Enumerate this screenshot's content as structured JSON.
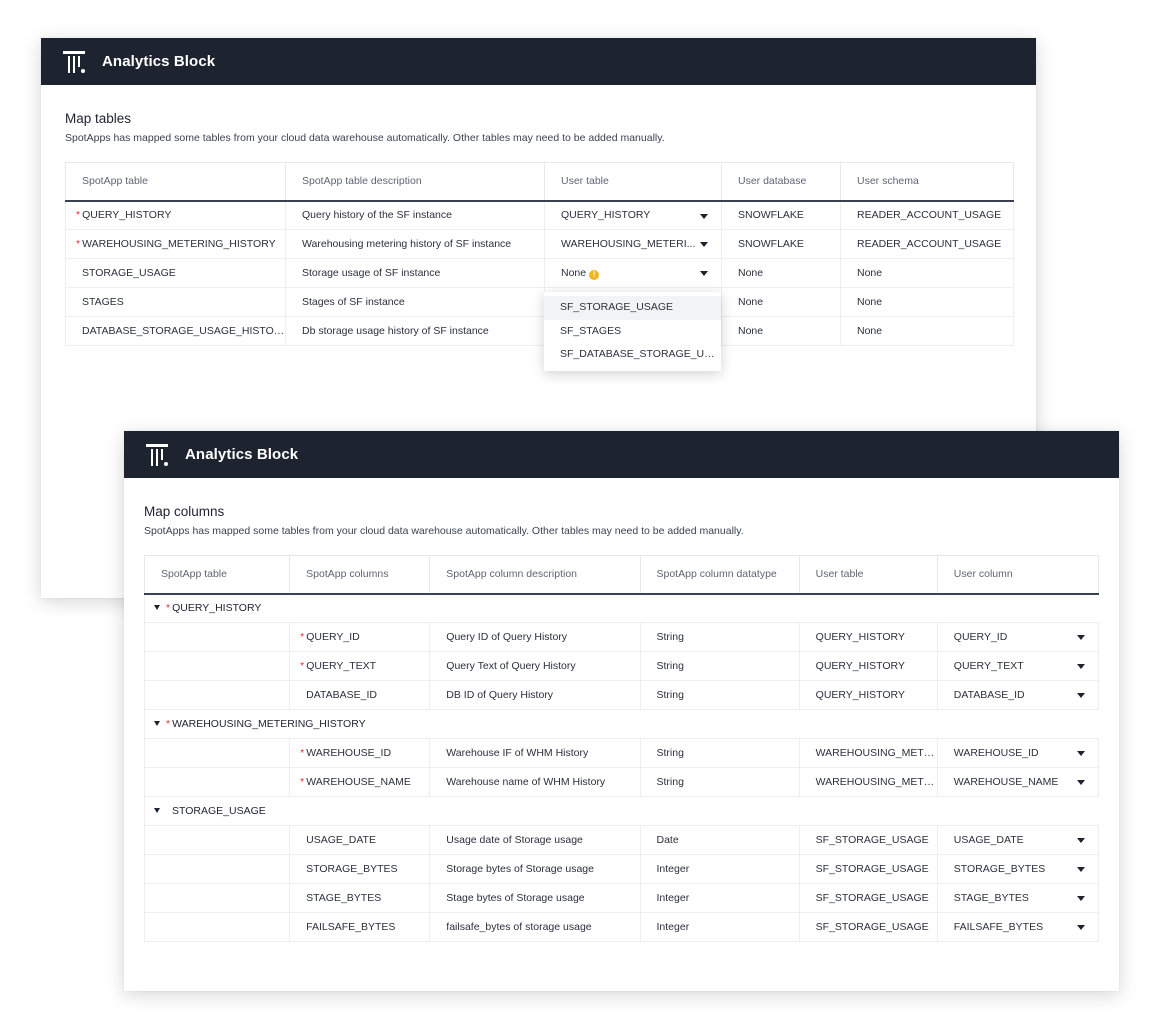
{
  "window1": {
    "app_title": "Analytics Block",
    "title": "Map tables",
    "subtitle": "SpotApps has mapped some tables from your cloud data warehouse automatically. Other tables may need to be added manually.",
    "headers": [
      "SpotApp table",
      "SpotApp table description",
      "User table",
      "User database",
      "User schema"
    ],
    "rows": [
      {
        "required": true,
        "table": "QUERY_HISTORY",
        "description": "Query history of the SF instance",
        "user_table": "QUERY_HISTORY",
        "dropdown": true,
        "warning": false,
        "database": "SNOWFLAKE",
        "schema": "READER_ACCOUNT_USAGE"
      },
      {
        "required": true,
        "table": "WAREHOUSING_METERING_HISTORY",
        "description": "Warehousing metering history of SF instance",
        "user_table": "WAREHOUSING_METERI...",
        "dropdown": true,
        "warning": false,
        "database": "SNOWFLAKE",
        "schema": "READER_ACCOUNT_USAGE"
      },
      {
        "required": false,
        "table": "STORAGE_USAGE",
        "description": "Storage usage of SF instance",
        "user_table": "None",
        "dropdown": true,
        "warning": true,
        "database": "None",
        "schema": "None"
      },
      {
        "required": false,
        "table": "STAGES",
        "description": "Stages of SF instance",
        "user_table": "",
        "dropdown": false,
        "warning": false,
        "database": "None",
        "schema": "None"
      },
      {
        "required": false,
        "table": "DATABASE_STORAGE_USAGE_HISTORY",
        "description": "Db storage usage history of SF instance",
        "user_table": "",
        "dropdown": false,
        "warning": false,
        "database": "None",
        "schema": "None"
      }
    ],
    "dropdown_options": [
      "SF_STORAGE_USAGE",
      "SF_STAGES",
      "SF_DATABASE_STORAGE_USAGE_HISTORY"
    ],
    "warning_glyph": "!"
  },
  "window2": {
    "app_title": "Analytics Block",
    "title": "Map columns",
    "subtitle": "SpotApps has mapped some tables from your cloud data warehouse automatically. Other tables may need to be added manually.",
    "headers": [
      "SpotApp table",
      "SpotApp columns",
      "SpotApp column description",
      "SpotApp column datatype",
      "User table",
      "User column"
    ],
    "groups": [
      {
        "name": "QUERY_HISTORY",
        "required": true,
        "rows": [
          {
            "required": true,
            "column": "QUERY_ID",
            "description": "Query ID of  Query History",
            "datatype": "String",
            "user_table": "QUERY_HISTORY",
            "user_column": "QUERY_ID"
          },
          {
            "required": true,
            "column": "QUERY_TEXT",
            "description": "Query Text of Query History",
            "datatype": "String",
            "user_table": "QUERY_HISTORY",
            "user_column": "QUERY_TEXT"
          },
          {
            "required": false,
            "column": "DATABASE_ID",
            "description": "DB ID of Query History",
            "datatype": "String",
            "user_table": "QUERY_HISTORY",
            "user_column": "DATABASE_ID"
          }
        ]
      },
      {
        "name": "WAREHOUSING_METERING_HISTORY",
        "required": true,
        "rows": [
          {
            "required": true,
            "column": "WAREHOUSE_ID",
            "description": "Warehouse IF of WHM History",
            "datatype": "String",
            "user_table": "WAREHOUSING_METE...",
            "user_column": "WAREHOUSE_ID"
          },
          {
            "required": true,
            "column": "WAREHOUSE_NAME",
            "description": "Warehouse name of  WHM History",
            "datatype": "String",
            "user_table": "WAREHOUSING_METE...",
            "user_column": "WAREHOUSE_NAME"
          }
        ]
      },
      {
        "name": "STORAGE_USAGE",
        "required": false,
        "rows": [
          {
            "required": false,
            "column": "USAGE_DATE",
            "description": "Usage date of Storage usage",
            "datatype": "Date",
            "user_table": "SF_STORAGE_USAGE",
            "user_column": "USAGE_DATE"
          },
          {
            "required": false,
            "column": "STORAGE_BYTES",
            "description": "Storage bytes of Storage usage",
            "datatype": "Integer",
            "user_table": "SF_STORAGE_USAGE",
            "user_column": "STORAGE_BYTES"
          },
          {
            "required": false,
            "column": "STAGE_BYTES",
            "description": "Stage bytes of Storage usage",
            "datatype": "Integer",
            "user_table": "SF_STORAGE_USAGE",
            "user_column": "STAGE_BYTES"
          },
          {
            "required": false,
            "column": "FAILSAFE_BYTES",
            "description": "failsafe_bytes of storage usage",
            "datatype": "Integer",
            "user_table": "SF_STORAGE_USAGE",
            "user_column": "FAILSAFE_BYTES"
          }
        ]
      }
    ]
  },
  "icons": {
    "logo": "thoughtspot-logo",
    "caret": "caret-down-icon",
    "warning": "warning-icon",
    "collapse": "collapse-triangle-icon"
  },
  "colors": {
    "topbar": "#1d232f",
    "required": "#e0303b",
    "warning": "#f1b51c",
    "highlight": "#f2f3f5"
  }
}
